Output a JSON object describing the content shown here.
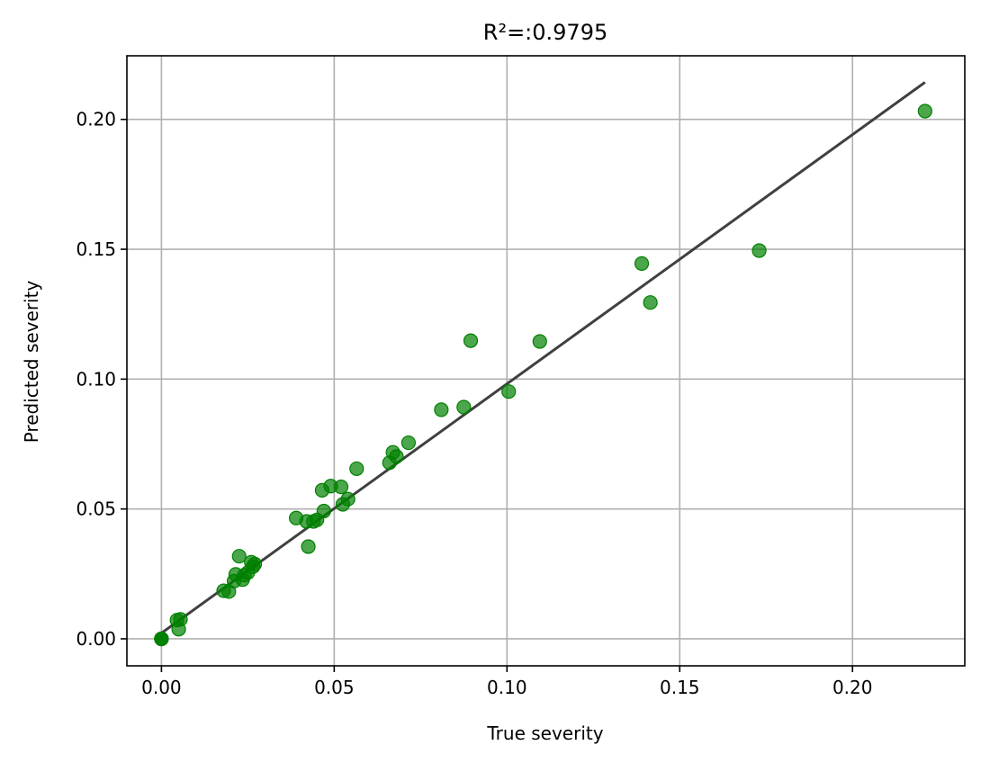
{
  "chart_data": {
    "type": "scatter",
    "title": "R²=:0.9795",
    "xlabel": "True severity",
    "ylabel": "Predicted severity",
    "xlim": [
      -0.01,
      0.2325
    ],
    "ylim": [
      -0.0104,
      0.2245
    ],
    "xticks": [
      0.0,
      0.05,
      0.1,
      0.15,
      0.2
    ],
    "yticks": [
      0.0,
      0.05,
      0.1,
      0.15,
      0.2
    ],
    "xtick_labels": [
      "0.00",
      "0.05",
      "0.10",
      "0.15",
      "0.20"
    ],
    "ytick_labels": [
      "0.00",
      "0.05",
      "0.10",
      "0.15",
      "0.20"
    ],
    "grid": true,
    "point_color": "#008000",
    "line_color": "#404040",
    "fit_line": {
      "x": [
        0.0,
        0.221
      ],
      "y": [
        0.0022,
        0.2143
      ]
    },
    "points": {
      "x": [
        0.0,
        0.0,
        0.0,
        0.0,
        0.0045,
        0.0055,
        0.005,
        0.018,
        0.0195,
        0.021,
        0.0215,
        0.0225,
        0.0235,
        0.024,
        0.025,
        0.026,
        0.027,
        0.0265,
        0.039,
        0.042,
        0.0425,
        0.044,
        0.045,
        0.0465,
        0.047,
        0.049,
        0.052,
        0.0525,
        0.054,
        0.0565,
        0.066,
        0.067,
        0.068,
        0.0715,
        0.081,
        0.0875,
        0.0895,
        0.1005,
        0.1095,
        0.139,
        0.1415,
        0.173,
        0.221
      ],
      "y": [
        0.0,
        0.0,
        0.0,
        0.0,
        0.0072,
        0.0075,
        0.0037,
        0.0185,
        0.0182,
        0.0222,
        0.0248,
        0.0318,
        0.0228,
        0.0245,
        0.0255,
        0.0295,
        0.0288,
        0.0278,
        0.0465,
        0.0452,
        0.0355,
        0.0452,
        0.0458,
        0.0572,
        0.0492,
        0.0588,
        0.0585,
        0.0518,
        0.0538,
        0.0655,
        0.0678,
        0.0718,
        0.0702,
        0.0755,
        0.0882,
        0.0892,
        0.1148,
        0.0952,
        0.1145,
        0.1445,
        0.1295,
        0.1495,
        0.2032
      ]
    }
  }
}
